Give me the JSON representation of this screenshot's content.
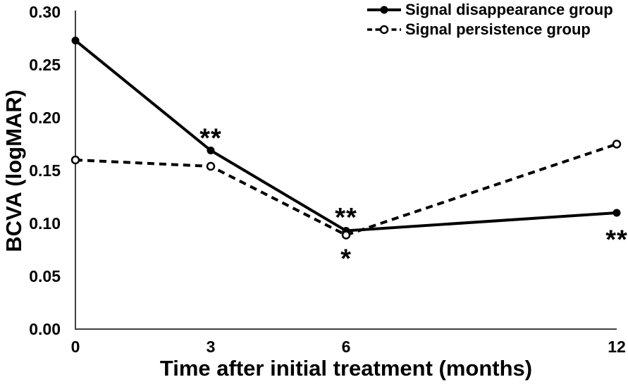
{
  "chart_data": {
    "type": "line",
    "x": [
      0,
      3,
      6,
      12
    ],
    "series": [
      {
        "name": "Signal disappearance group",
        "values": [
          0.273,
          0.169,
          0.093,
          0.11
        ],
        "line_style": "solid",
        "marker": "filled-circle"
      },
      {
        "name": "Signal persistence group",
        "values": [
          0.16,
          0.154,
          0.089,
          0.175
        ],
        "line_style": "dashed",
        "marker": "open-circle"
      }
    ],
    "title": "",
    "xlabel": "Time after initial treatment (months)",
    "ylabel": "BCVA (logMAR)",
    "xlim": [
      0,
      12
    ],
    "ylim": [
      0,
      0.3
    ],
    "xticks": [
      {
        "value": 0,
        "label": "0"
      },
      {
        "value": 3,
        "label": "3"
      },
      {
        "value": 6,
        "label": "6"
      },
      {
        "value": 12,
        "label": "12"
      }
    ],
    "yticks": [
      {
        "value": 0.0,
        "label": "0.00"
      },
      {
        "value": 0.05,
        "label": "0.05"
      },
      {
        "value": 0.1,
        "label": "0.10"
      },
      {
        "value": 0.15,
        "label": "0.15"
      },
      {
        "value": 0.2,
        "label": "0.20"
      },
      {
        "value": 0.25,
        "label": "0.25"
      },
      {
        "value": 0.3,
        "label": "0.30"
      }
    ],
    "grid": false,
    "legend_position": "top-right",
    "annotations": [
      {
        "text": "**",
        "x": 3,
        "y": 0.185
      },
      {
        "text": "**",
        "x": 6,
        "y": 0.11
      },
      {
        "text": "*",
        "x": 6,
        "y": 0.071
      },
      {
        "text": "**",
        "x": 12,
        "y": 0.089
      }
    ],
    "colors": {
      "series": "#000000",
      "axis": "#404040",
      "text": "#000000",
      "background": "#ffffff"
    }
  }
}
